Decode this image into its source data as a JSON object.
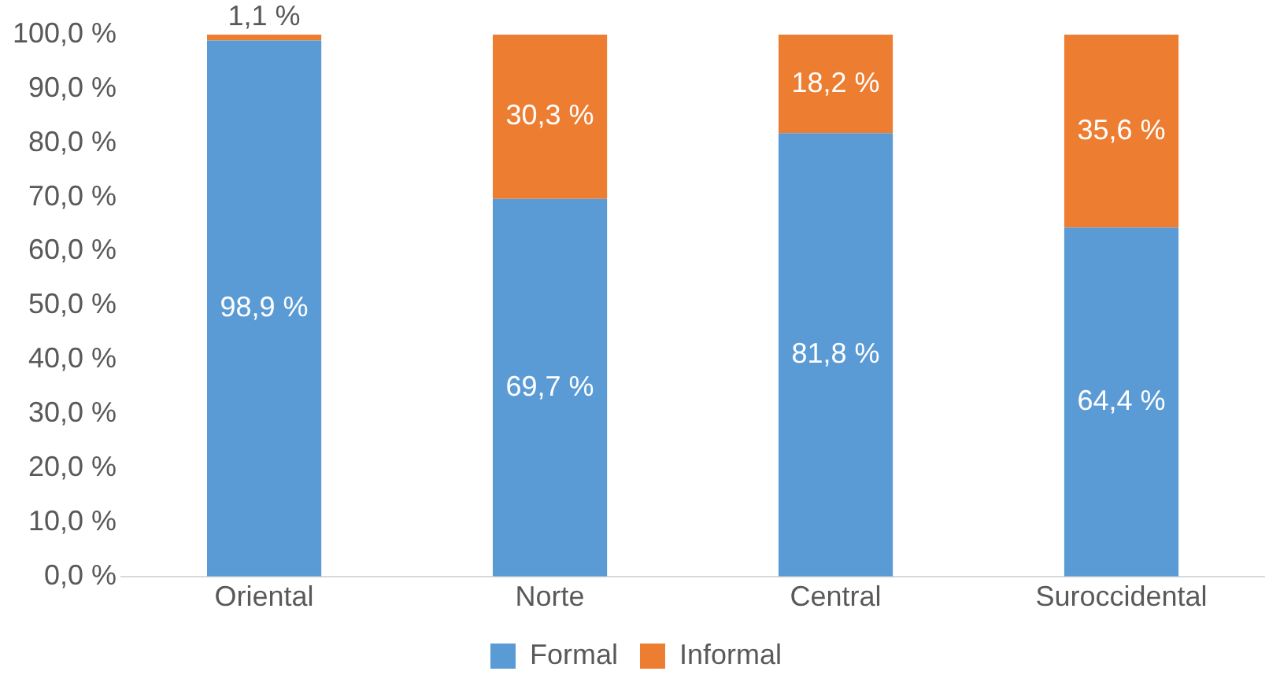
{
  "chart_data": {
    "type": "bar",
    "stacked": true,
    "categories": [
      "Oriental",
      "Norte",
      "Central",
      "Suroccidental"
    ],
    "series": [
      {
        "name": "Formal",
        "color": "#5b9bd5",
        "values": [
          98.9,
          69.7,
          81.8,
          64.4
        ],
        "value_labels": [
          "98,9 %",
          "69,7 %",
          "81,8 %",
          "64,4 %"
        ]
      },
      {
        "name": "Informal",
        "color": "#ed7d31",
        "values": [
          1.1,
          30.3,
          18.2,
          35.6
        ],
        "value_labels": [
          "1,1 %",
          "30,3 %",
          "18,2 %",
          "35,6 %"
        ]
      }
    ],
    "ylim": [
      0,
      100
    ],
    "yticks": [
      {
        "value": 0,
        "label": "0,0 %"
      },
      {
        "value": 10,
        "label": "10,0 %"
      },
      {
        "value": 20,
        "label": "20,0 %"
      },
      {
        "value": 30,
        "label": "30,0 %"
      },
      {
        "value": 40,
        "label": "40,0 %"
      },
      {
        "value": 50,
        "label": "50,0 %"
      },
      {
        "value": 60,
        "label": "60,0 %"
      },
      {
        "value": 70,
        "label": "70,0 %"
      },
      {
        "value": 80,
        "label": "80,0 %"
      },
      {
        "value": 90,
        "label": "90,0 %"
      },
      {
        "value": 100,
        "label": "100,0 %"
      }
    ],
    "grid": false,
    "legend": "bottom"
  }
}
